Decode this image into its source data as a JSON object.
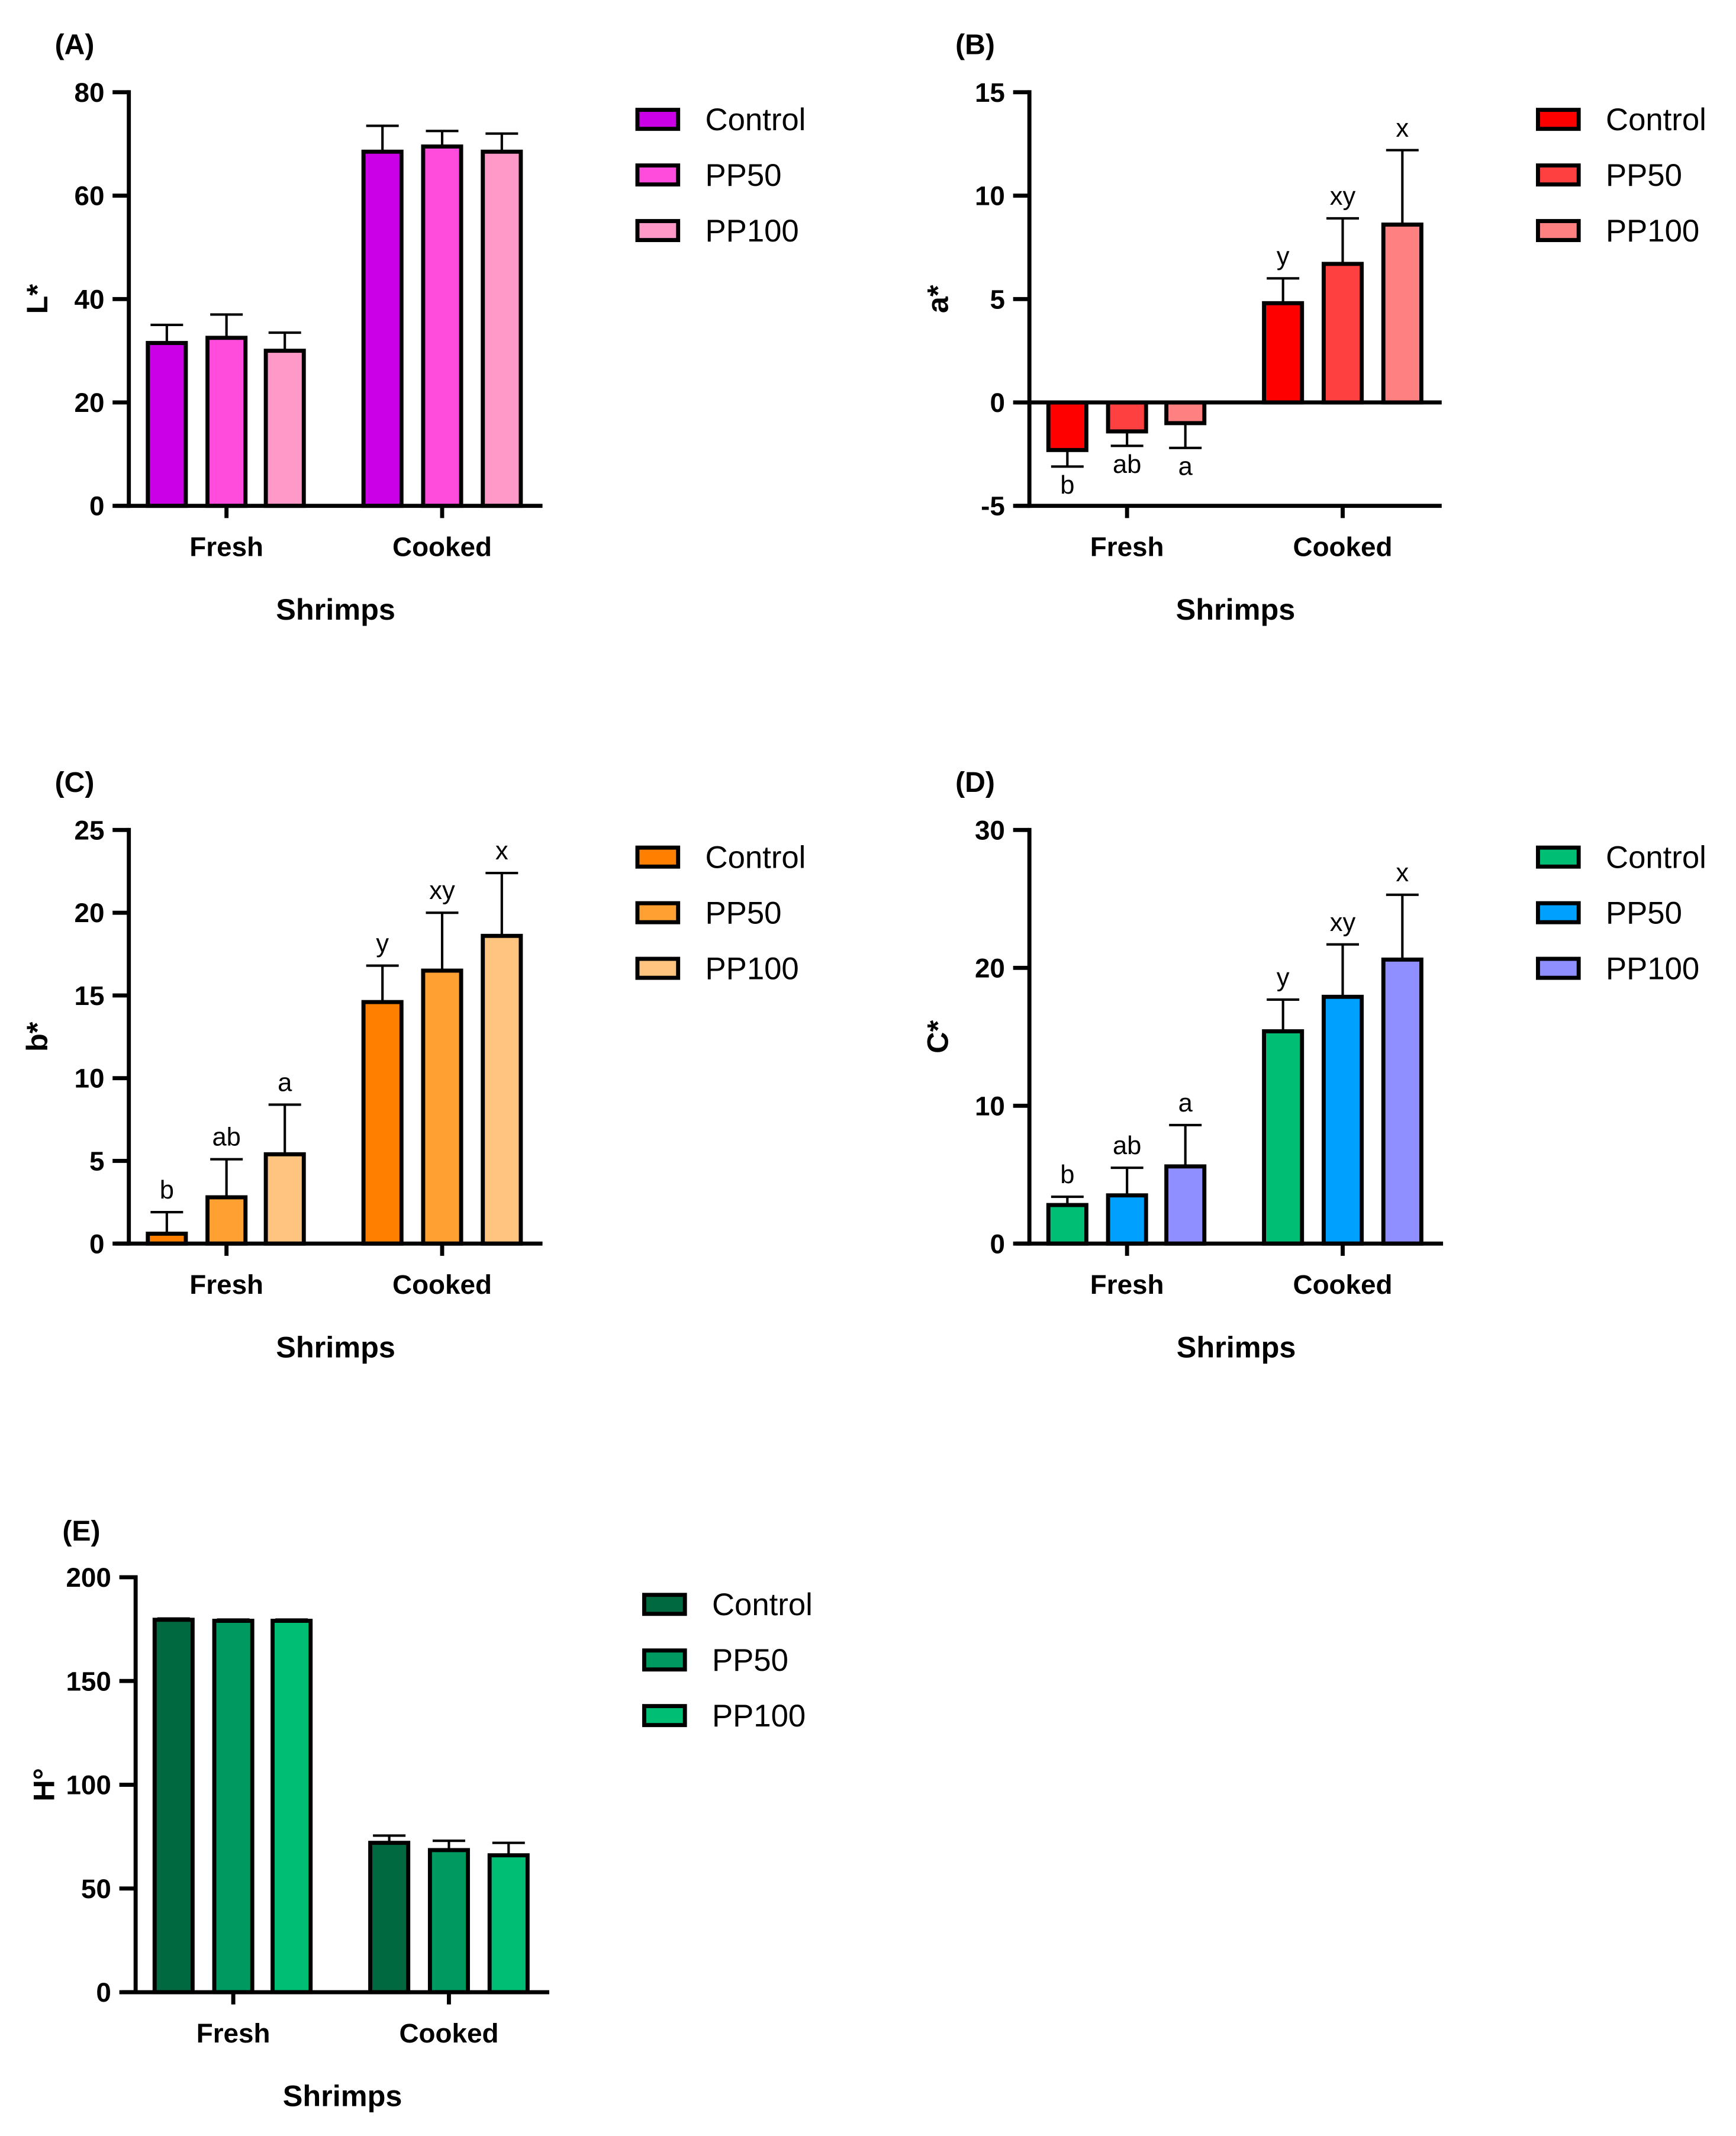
{
  "chart_data": [
    {
      "type": "bar",
      "panel_label": "(A)",
      "ylabel": "L*",
      "xlabel": "Shrimps",
      "ylim": [
        0,
        80
      ],
      "yticks": [
        0,
        20,
        40,
        60,
        80
      ],
      "categories": [
        "Fresh",
        "Cooked"
      ],
      "series": [
        {
          "name": "Control",
          "color": "#CC00E6",
          "values": [
            31.5,
            68.5
          ],
          "errors": [
            3.5,
            5.0
          ],
          "letters": [
            "",
            ""
          ]
        },
        {
          "name": "PP50",
          "color": "#FF4CDD",
          "values": [
            32.5,
            69.5
          ],
          "errors": [
            4.5,
            3.0
          ],
          "letters": [
            "",
            ""
          ]
        },
        {
          "name": "PP100",
          "color": "#FF99C8",
          "values": [
            30.0,
            68.5
          ],
          "errors": [
            3.5,
            3.5
          ],
          "letters": [
            "",
            ""
          ]
        }
      ]
    },
    {
      "type": "bar",
      "panel_label": "(B)",
      "ylabel": "a*",
      "xlabel": "Shrimps",
      "ylim": [
        -5,
        15
      ],
      "yticks": [
        -5,
        0,
        5,
        10,
        15
      ],
      "categories": [
        "Fresh",
        "Cooked"
      ],
      "series": [
        {
          "name": "Control",
          "color": "#FF0000",
          "values": [
            -2.3,
            4.8
          ],
          "errors": [
            0.8,
            1.2
          ],
          "letters": [
            "b",
            "y"
          ]
        },
        {
          "name": "PP50",
          "color": "#FF4040",
          "values": [
            -1.4,
            6.7
          ],
          "errors": [
            0.7,
            2.2
          ],
          "letters": [
            "ab",
            "xy"
          ]
        },
        {
          "name": "PP100",
          "color": "#FF8080",
          "values": [
            -1.0,
            8.6
          ],
          "errors": [
            1.2,
            3.6
          ],
          "letters": [
            "a",
            "x"
          ]
        }
      ]
    },
    {
      "type": "bar",
      "panel_label": "(C)",
      "ylabel": "b*",
      "xlabel": "Shrimps",
      "ylim": [
        0,
        25
      ],
      "yticks": [
        0,
        5,
        10,
        15,
        20,
        25
      ],
      "categories": [
        "Fresh",
        "Cooked"
      ],
      "series": [
        {
          "name": "Control",
          "color": "#FF8000",
          "values": [
            0.6,
            14.6
          ],
          "errors": [
            1.3,
            2.2
          ],
          "letters": [
            "b",
            "y"
          ]
        },
        {
          "name": "PP50",
          "color": "#FFA033",
          "values": [
            2.8,
            16.5
          ],
          "errors": [
            2.3,
            3.5
          ],
          "letters": [
            "ab",
            "xy"
          ]
        },
        {
          "name": "PP100",
          "color": "#FFC480",
          "values": [
            5.4,
            18.6
          ],
          "errors": [
            3.0,
            3.8
          ],
          "letters": [
            "a",
            "x"
          ]
        }
      ]
    },
    {
      "type": "bar",
      "panel_label": "(D)",
      "ylabel": "C*",
      "xlabel": "Shrimps",
      "ylim": [
        0,
        30
      ],
      "yticks": [
        0,
        10,
        20,
        30
      ],
      "categories": [
        "Fresh",
        "Cooked"
      ],
      "series": [
        {
          "name": "Control",
          "color": "#00BF74",
          "values": [
            2.8,
            15.4
          ],
          "errors": [
            0.6,
            2.3
          ],
          "letters": [
            "b",
            "y"
          ]
        },
        {
          "name": "PP50",
          "color": "#00A0FF",
          "values": [
            3.5,
            17.9
          ],
          "errors": [
            2.0,
            3.8
          ],
          "letters": [
            "ab",
            "xy"
          ]
        },
        {
          "name": "PP100",
          "color": "#8F8FFF",
          "values": [
            5.6,
            20.6
          ],
          "errors": [
            3.0,
            4.7
          ],
          "letters": [
            "a",
            "x"
          ]
        }
      ]
    },
    {
      "type": "bar",
      "panel_label": "(E)",
      "ylabel": "H°",
      "xlabel": "Shrimps",
      "ylim": [
        0,
        200
      ],
      "yticks": [
        0,
        50,
        100,
        150,
        200
      ],
      "categories": [
        "Fresh",
        "Cooked"
      ],
      "series": [
        {
          "name": "Control",
          "color": "#006940",
          "values": [
            179.5,
            72.0
          ],
          "errors": [
            0.6,
            3.5
          ],
          "letters": [
            "",
            ""
          ]
        },
        {
          "name": "PP50",
          "color": "#009960",
          "values": [
            179.0,
            68.5
          ],
          "errors": [
            0.6,
            4.5
          ],
          "letters": [
            "",
            ""
          ]
        },
        {
          "name": "PP100",
          "color": "#00BF74",
          "values": [
            179.0,
            66.0
          ],
          "errors": [
            0.6,
            6.0
          ],
          "letters": [
            "",
            ""
          ]
        }
      ]
    }
  ]
}
